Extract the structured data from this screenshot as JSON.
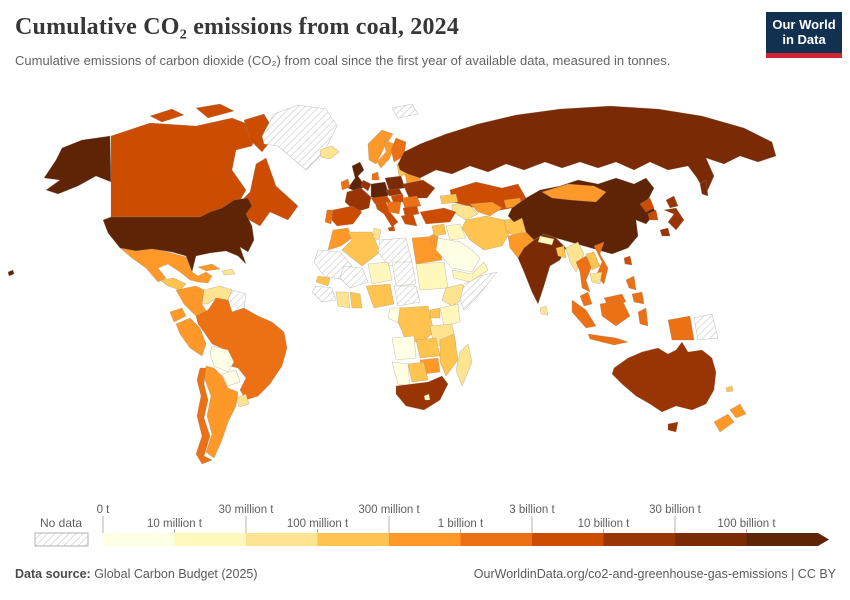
{
  "header": {
    "title": "Cumulative CO₂ emissions from coal, 2024",
    "subtitle": "Cumulative emissions of carbon dioxide (CO₂) from coal since the first year of available data, measured in tonnes."
  },
  "logo": {
    "line1": "Our World",
    "line2": "in Data",
    "bg_color": "#12304f",
    "bar_color": "#cd2632"
  },
  "legend": {
    "no_data_label": "No data",
    "tick_labels": [
      "0 t",
      "10 million t",
      "30 million t",
      "100 million t",
      "300 million t",
      "1 billion t",
      "3 billion t",
      "10 billion t",
      "30 billion t",
      "100 billion t"
    ]
  },
  "footer": {
    "source_label": "Data source:",
    "source_value": " Global Carbon Budget (2025)",
    "link_text": "OurWorldinData.org/co2-and-greenhouse-gas-emissions | CC BY"
  },
  "chart_data": {
    "type": "choropleth",
    "title": "Cumulative CO₂ emissions from coal, 2024",
    "unit": "tonnes",
    "legend_bins": [
      {
        "label": "0 t – 10 million t",
        "color": "#FFFFE5"
      },
      {
        "label": "10–30 million t",
        "color": "#FFF7BC"
      },
      {
        "label": "30–100 million t",
        "color": "#FEE391"
      },
      {
        "label": "100–300 million t",
        "color": "#FEC44F"
      },
      {
        "label": "300 million – 1 billion t",
        "color": "#FE9929"
      },
      {
        "label": "1–3 billion t",
        "color": "#EC7014"
      },
      {
        "label": "3–10 billion t",
        "color": "#CC4C02"
      },
      {
        "label": "10–30 billion t",
        "color": "#993404"
      },
      {
        "label": "30–100 billion t",
        "color": "#7A2B06"
      },
      {
        "label": "100 billion t and over",
        "color": "#5F2306"
      }
    ],
    "no_data": {
      "label": "No data",
      "pattern": "hatched"
    },
    "countries": {
      "usa": {
        "name": "United States",
        "bin": 9
      },
      "canada": {
        "name": "Canada",
        "bin": 6
      },
      "greenland": {
        "name": "Greenland",
        "bin": -1
      },
      "iceland": {
        "name": "Iceland",
        "bin": 2
      },
      "mexico": {
        "name": "Mexico",
        "bin": 4
      },
      "cuba": {
        "name": "Cuba",
        "bin": 4
      },
      "hispaniola": {
        "name": "Dominican Republic",
        "bin": 2
      },
      "camerica_n": {
        "name": "Guatemala/Honduras",
        "bin": 3
      },
      "camerica_s": {
        "name": "Nicaragua/Costa Rica/Panama",
        "bin": 2
      },
      "colombia": {
        "name": "Colombia",
        "bin": 4
      },
      "venezuela": {
        "name": "Venezuela",
        "bin": 2
      },
      "guyanas": {
        "name": "Guyana/Suriname",
        "bin": -1
      },
      "ecuador": {
        "name": "Ecuador",
        "bin": 4
      },
      "peru": {
        "name": "Peru",
        "bin": 4
      },
      "brazil": {
        "name": "Brazil",
        "bin": 5
      },
      "bolivia": {
        "name": "Bolivia",
        "bin": 0
      },
      "paraguay": {
        "name": "Paraguay",
        "bin": 0
      },
      "uruguay": {
        "name": "Uruguay",
        "bin": 2
      },
      "argentina": {
        "name": "Argentina",
        "bin": 4
      },
      "chile": {
        "name": "Chile",
        "bin": 5
      },
      "uk": {
        "name": "United Kingdom",
        "bin": 9
      },
      "ireland": {
        "name": "Ireland",
        "bin": 5
      },
      "norway": {
        "name": "Norway",
        "bin": 4
      },
      "sweden": {
        "name": "Sweden",
        "bin": 4
      },
      "finland": {
        "name": "Finland",
        "bin": 5
      },
      "denmark": {
        "name": "Denmark",
        "bin": 5
      },
      "germany": {
        "name": "Germany",
        "bin": 9
      },
      "benelux": {
        "name": "Netherlands/Belgium",
        "bin": 7
      },
      "france": {
        "name": "France",
        "bin": 7
      },
      "spain": {
        "name": "Spain",
        "bin": 6
      },
      "portugal": {
        "name": "Portugal",
        "bin": 5
      },
      "italy": {
        "name": "Italy",
        "bin": 6
      },
      "alpine": {
        "name": "Switzerland/Austria",
        "bin": 6
      },
      "czech": {
        "name": "Czechia/Slovakia",
        "bin": 7
      },
      "poland": {
        "name": "Poland",
        "bin": 8
      },
      "baltics": {
        "name": "Baltic states",
        "bin": 3
      },
      "belarus": {
        "name": "Belarus",
        "bin": 4
      },
      "ukraine": {
        "name": "Ukraine",
        "bin": 7
      },
      "romania": {
        "name": "Romania",
        "bin": 5
      },
      "hungary": {
        "name": "Hungary",
        "bin": 6
      },
      "balkans": {
        "name": "Serbia/Bosnia/Croatia",
        "bin": 5
      },
      "bulgaria": {
        "name": "Bulgaria",
        "bin": 6
      },
      "greece": {
        "name": "Greece",
        "bin": 6
      },
      "svalbard": {
        "name": "Svalbard",
        "bin": -1
      },
      "morocco": {
        "name": "Morocco",
        "bin": 4
      },
      "algeria": {
        "name": "Algeria",
        "bin": 3
      },
      "tunisia": {
        "name": "Tunisia",
        "bin": 2
      },
      "libya": {
        "name": "Libya",
        "bin": -1
      },
      "egypt": {
        "name": "Egypt",
        "bin": 4
      },
      "mauritania": {
        "name": "Mauritania/Western Sahara",
        "bin": -1
      },
      "mali": {
        "name": "Mali",
        "bin": -1
      },
      "niger": {
        "name": "Niger",
        "bin": 1
      },
      "chad": {
        "name": "Chad",
        "bin": -1
      },
      "sudan": {
        "name": "Sudan",
        "bin": 1
      },
      "ethiopia": {
        "name": "Ethiopia",
        "bin": 2
      },
      "somalia": {
        "name": "Somalia",
        "bin": -1
      },
      "senegal": {
        "name": "Senegal",
        "bin": 3
      },
      "guinea": {
        "name": "Guinea region",
        "bin": -1
      },
      "ivory_coast": {
        "name": "Côte d'Ivoire",
        "bin": 2
      },
      "ghana": {
        "name": "Ghana",
        "bin": 3
      },
      "nigeria": {
        "name": "Nigeria",
        "bin": 3
      },
      "cameroon": {
        "name": "Cameroon/Central African Rep.",
        "bin": -1
      },
      "congo_gabon": {
        "name": "Congo/Gabon",
        "bin": 0
      },
      "drc": {
        "name": "Democratic Republic of Congo",
        "bin": 3
      },
      "uganda": {
        "name": "Uganda",
        "bin": 3
      },
      "kenya": {
        "name": "Kenya",
        "bin": 1
      },
      "tanzania": {
        "name": "Tanzania",
        "bin": 2
      },
      "angola": {
        "name": "Angola",
        "bin": 0
      },
      "zambia": {
        "name": "Zambia",
        "bin": 3
      },
      "mozambique": {
        "name": "Mozambique/Malawi",
        "bin": 3
      },
      "zimbabwe": {
        "name": "Zimbabwe",
        "bin": 4
      },
      "botswana": {
        "name": "Botswana",
        "bin": 3
      },
      "namibia": {
        "name": "Namibia",
        "bin": 0
      },
      "south_africa": {
        "name": "South Africa",
        "bin": 7
      },
      "lesotho": {
        "name": "Lesotho",
        "bin": 1
      },
      "madagascar": {
        "name": "Madagascar",
        "bin": 2
      },
      "russia": {
        "name": "Russia",
        "bin": 8
      },
      "kazakhstan": {
        "name": "Kazakhstan",
        "bin": 6
      },
      "turkmenistan": {
        "name": "Turkmenistan",
        "bin": 2
      },
      "uzbekistan": {
        "name": "Uzbekistan",
        "bin": 4
      },
      "kyrgyzstan": {
        "name": "Kyrgyzstan/Tajikistan",
        "bin": 4
      },
      "caucasus": {
        "name": "Georgia/Azerbaijan",
        "bin": 3
      },
      "turkey": {
        "name": "Turkey",
        "bin": 6
      },
      "syria": {
        "name": "Syria",
        "bin": 3
      },
      "iraq": {
        "name": "Iraq",
        "bin": 1
      },
      "iran": {
        "name": "Iran",
        "bin": 3
      },
      "saudi": {
        "name": "Saudi Arabia",
        "bin": 0
      },
      "yemen_oman": {
        "name": "Yemen/Oman",
        "bin": 1
      },
      "israel": {
        "name": "Israel",
        "bin": 4
      },
      "afghanistan": {
        "name": "Afghanistan",
        "bin": 3
      },
      "pakistan": {
        "name": "Pakistan",
        "bin": 4
      },
      "india": {
        "name": "India",
        "bin": 8
      },
      "nepal": {
        "name": "Nepal",
        "bin": 1
      },
      "bangladesh": {
        "name": "Bangladesh",
        "bin": 3
      },
      "sri_lanka": {
        "name": "Sri Lanka",
        "bin": 2
      },
      "myanmar": {
        "name": "Myanmar",
        "bin": 2
      },
      "thailand": {
        "name": "Thailand",
        "bin": 5
      },
      "laos": {
        "name": "Laos",
        "bin": 3
      },
      "vietnam": {
        "name": "Vietnam",
        "bin": 5
      },
      "cambodia": {
        "name": "Cambodia",
        "bin": 2
      },
      "malaysia": {
        "name": "Malaysia",
        "bin": 5
      },
      "indonesia": {
        "name": "Indonesia",
        "bin": 5
      },
      "philippines": {
        "name": "Philippines",
        "bin": 5
      },
      "taiwan": {
        "name": "Taiwan",
        "bin": 6
      },
      "china": {
        "name": "China",
        "bin": 9
      },
      "mongolia": {
        "name": "Mongolia",
        "bin": 4
      },
      "north_korea": {
        "name": "North Korea",
        "bin": 6
      },
      "south_korea": {
        "name": "South Korea",
        "bin": 6
      },
      "japan": {
        "name": "Japan",
        "bin": 7
      },
      "australia": {
        "name": "Australia",
        "bin": 7
      },
      "png": {
        "name": "Papua New Guinea",
        "bin": -1
      },
      "new_caledonia": {
        "name": "New Caledonia",
        "bin": 3
      },
      "new_zealand": {
        "name": "New Zealand",
        "bin": 4
      }
    }
  }
}
